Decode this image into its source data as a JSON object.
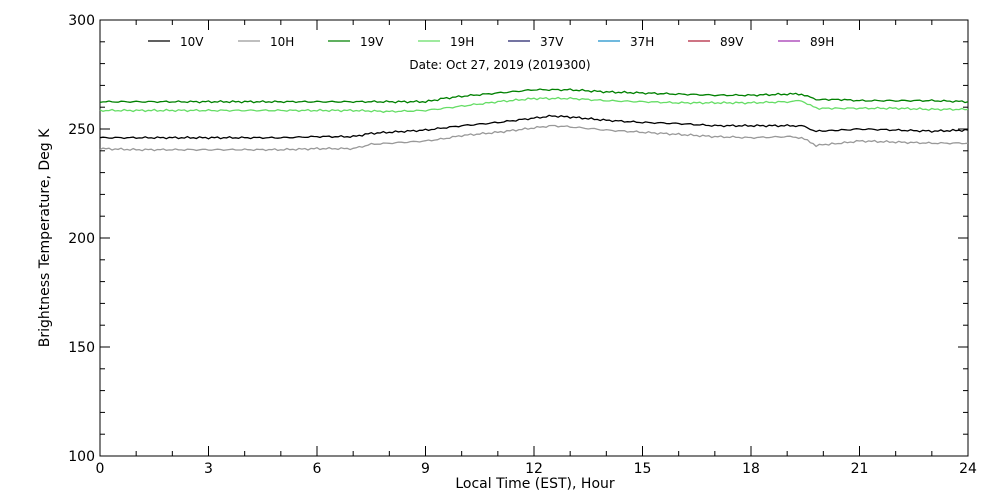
{
  "chart_data": {
    "type": "line",
    "xlabel": "Local Time (EST), Hour",
    "ylabel": "Brightness Temperature, Deg K",
    "annotation": "Date: Oct 27, 2019 (2019300)",
    "xlim": [
      0,
      24
    ],
    "ylim": [
      100,
      300
    ],
    "x_ticks": [
      0,
      3,
      6,
      9,
      12,
      15,
      18,
      21,
      24
    ],
    "y_ticks": [
      100,
      150,
      200,
      250,
      300
    ],
    "grid": false,
    "legend_position": "top",
    "series": [
      {
        "name": "10V",
        "color": "#000000",
        "x": [
          0,
          1,
          3,
          5,
          6,
          7,
          7.5,
          8,
          9,
          9.5,
          10,
          11,
          12,
          12.5,
          13,
          14,
          15,
          16,
          17,
          18,
          19,
          19.4,
          19.8,
          20.5,
          21,
          22,
          23,
          24
        ],
        "values": [
          246,
          246,
          246,
          246,
          246.5,
          246.5,
          248,
          248.5,
          249.5,
          250.5,
          251.5,
          253,
          255,
          256,
          255.5,
          254,
          253,
          252.5,
          251.5,
          251.5,
          251.5,
          251.5,
          249,
          249.5,
          250,
          249.5,
          249,
          249.5
        ]
      },
      {
        "name": "10H",
        "color": "#999999",
        "x": [
          0,
          1,
          3,
          5,
          6,
          7,
          7.5,
          8,
          9,
          9.5,
          10,
          11,
          12,
          12.5,
          13,
          14,
          15,
          16,
          17,
          18,
          19,
          19.4,
          19.8,
          20.5,
          21,
          22,
          23,
          24
        ],
        "values": [
          241,
          240.5,
          240.5,
          240.5,
          241,
          241,
          243,
          243.5,
          244.5,
          245.5,
          247,
          248.5,
          250.5,
          251.5,
          251,
          249.5,
          248.5,
          247.5,
          246.5,
          246,
          246.5,
          246,
          242.5,
          243.5,
          244.5,
          244,
          243.5,
          243.5
        ]
      },
      {
        "name": "19V",
        "color": "#008000",
        "x": [
          0,
          2,
          4,
          6,
          7,
          8,
          9,
          9.5,
          10,
          11,
          12,
          13,
          14,
          15,
          16,
          17,
          18,
          19,
          19.4,
          19.8,
          20.5,
          21,
          22,
          23,
          24
        ],
        "values": [
          262.5,
          262.5,
          262.5,
          262.5,
          262.5,
          262.5,
          262.5,
          264,
          265,
          266.5,
          268,
          268,
          267,
          266.5,
          266,
          265.5,
          265.5,
          266,
          266,
          263.5,
          263.5,
          263,
          263,
          263,
          262.5
        ]
      },
      {
        "name": "19H",
        "color": "#66dd66",
        "x": [
          0,
          2,
          4,
          6,
          7,
          8,
          9,
          9.5,
          10,
          11,
          12,
          13,
          14,
          15,
          16,
          17,
          18,
          19,
          19.4,
          19.8,
          20.5,
          21,
          22,
          23,
          24
        ],
        "values": [
          258.5,
          258.5,
          258.5,
          258.5,
          258.5,
          258,
          258.5,
          259.5,
          260.5,
          262.5,
          264,
          264,
          263,
          262.5,
          262,
          262,
          262,
          262.5,
          263,
          259.5,
          259.5,
          259.5,
          259.5,
          259,
          259
        ]
      },
      {
        "name": "37V",
        "color": "#20206a",
        "x": [],
        "values": []
      },
      {
        "name": "37H",
        "color": "#1a8fc9",
        "x": [],
        "values": []
      },
      {
        "name": "89V",
        "color": "#b0203a",
        "x": [],
        "values": []
      },
      {
        "name": "89H",
        "color": "#a030b0",
        "x": [],
        "values": []
      }
    ]
  }
}
